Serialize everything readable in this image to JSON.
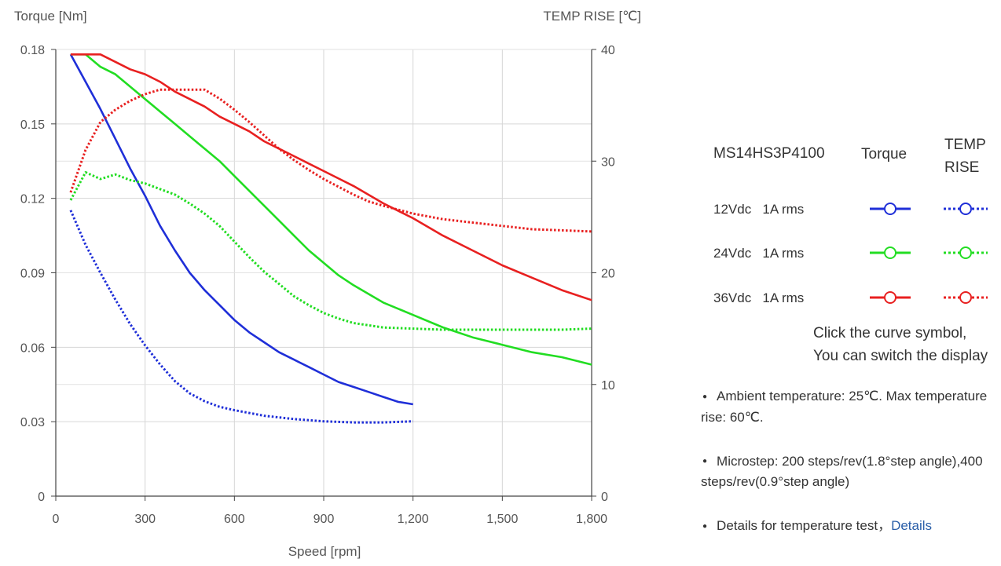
{
  "chart_data": {
    "type": "line",
    "ylabel_left": "Torque  [Nm]",
    "ylabel_right": "TEMP RISE [℃]",
    "xlabel": "Speed [rpm]",
    "xlim": [
      0,
      1800
    ],
    "ylim_left": [
      0,
      0.18
    ],
    "ylim_right": [
      0,
      40
    ],
    "grid": true,
    "x_ticks": [
      0,
      300,
      600,
      900,
      1200,
      1500,
      1800
    ],
    "x_tick_labels": [
      "0",
      "300",
      "600",
      "900",
      "1,200",
      "1,500",
      "1,800"
    ],
    "y_left_ticks": [
      0,
      0.03,
      0.06,
      0.09,
      0.12,
      0.15,
      0.18
    ],
    "y_left_tick_labels": [
      "0",
      "0.03",
      "0.06",
      "0.09",
      "0.12",
      "0.15",
      "0.18"
    ],
    "y_right_ticks": [
      0,
      10,
      20,
      30,
      40
    ],
    "y_right_tick_labels": [
      "0",
      "10",
      "20",
      "30",
      "40"
    ],
    "series": [
      {
        "legend_label": "12Vdc   1A rms",
        "kind": "torque",
        "axis": "left",
        "color": "#1f2fd8",
        "style": "solid",
        "points": [
          [
            50,
            0.178
          ],
          [
            100,
            0.167
          ],
          [
            150,
            0.156
          ],
          [
            200,
            0.144
          ],
          [
            250,
            0.132
          ],
          [
            300,
            0.121
          ],
          [
            350,
            0.109
          ],
          [
            400,
            0.099
          ],
          [
            450,
            0.09
          ],
          [
            500,
            0.083
          ],
          [
            550,
            0.077
          ],
          [
            600,
            0.071
          ],
          [
            650,
            0.066
          ],
          [
            700,
            0.062
          ],
          [
            750,
            0.058
          ],
          [
            800,
            0.055
          ],
          [
            850,
            0.052
          ],
          [
            900,
            0.049
          ],
          [
            950,
            0.046
          ],
          [
            1000,
            0.044
          ],
          [
            1050,
            0.042
          ],
          [
            1100,
            0.04
          ],
          [
            1150,
            0.038
          ],
          [
            1200,
            0.037
          ]
        ]
      },
      {
        "legend_label": "12Vdc   1A rms",
        "kind": "temp",
        "axis": "right",
        "color": "#1f2fd8",
        "style": "dotted",
        "points": [
          [
            50,
            25.6
          ],
          [
            100,
            22.5
          ],
          [
            150,
            20.0
          ],
          [
            200,
            17.6
          ],
          [
            250,
            15.4
          ],
          [
            300,
            13.5
          ],
          [
            350,
            11.8
          ],
          [
            400,
            10.3
          ],
          [
            450,
            9.2
          ],
          [
            500,
            8.5
          ],
          [
            550,
            8.0
          ],
          [
            600,
            7.7
          ],
          [
            700,
            7.2
          ],
          [
            800,
            6.9
          ],
          [
            900,
            6.7
          ],
          [
            1000,
            6.6
          ],
          [
            1100,
            6.6
          ],
          [
            1200,
            6.7
          ]
        ]
      },
      {
        "legend_label": "24Vdc   1A rms",
        "kind": "torque",
        "axis": "left",
        "color": "#22dd22",
        "style": "solid",
        "points": [
          [
            50,
            0.178
          ],
          [
            100,
            0.178
          ],
          [
            150,
            0.173
          ],
          [
            200,
            0.17
          ],
          [
            250,
            0.165
          ],
          [
            300,
            0.16
          ],
          [
            350,
            0.155
          ],
          [
            400,
            0.15
          ],
          [
            450,
            0.145
          ],
          [
            500,
            0.14
          ],
          [
            550,
            0.135
          ],
          [
            600,
            0.129
          ],
          [
            650,
            0.123
          ],
          [
            700,
            0.117
          ],
          [
            750,
            0.111
          ],
          [
            800,
            0.105
          ],
          [
            850,
            0.099
          ],
          [
            900,
            0.094
          ],
          [
            950,
            0.089
          ],
          [
            1000,
            0.085
          ],
          [
            1100,
            0.078
          ],
          [
            1200,
            0.073
          ],
          [
            1300,
            0.068
          ],
          [
            1400,
            0.064
          ],
          [
            1500,
            0.061
          ],
          [
            1600,
            0.058
          ],
          [
            1700,
            0.056
          ],
          [
            1800,
            0.053
          ]
        ]
      },
      {
        "legend_label": "24Vdc   1A rms",
        "kind": "temp",
        "axis": "right",
        "color": "#22dd22",
        "style": "dotted",
        "points": [
          [
            50,
            26.5
          ],
          [
            100,
            29.0
          ],
          [
            150,
            28.4
          ],
          [
            200,
            28.8
          ],
          [
            250,
            28.3
          ],
          [
            300,
            28.0
          ],
          [
            350,
            27.5
          ],
          [
            400,
            27.0
          ],
          [
            450,
            26.2
          ],
          [
            500,
            25.3
          ],
          [
            550,
            24.2
          ],
          [
            600,
            22.8
          ],
          [
            650,
            21.4
          ],
          [
            700,
            20.1
          ],
          [
            750,
            19.0
          ],
          [
            800,
            17.9
          ],
          [
            850,
            17.1
          ],
          [
            900,
            16.4
          ],
          [
            950,
            15.9
          ],
          [
            1000,
            15.5
          ],
          [
            1100,
            15.1
          ],
          [
            1200,
            15.0
          ],
          [
            1300,
            14.9
          ],
          [
            1400,
            14.9
          ],
          [
            1500,
            14.9
          ],
          [
            1600,
            14.9
          ],
          [
            1700,
            14.9
          ],
          [
            1800,
            15.0
          ]
        ]
      },
      {
        "legend_label": "36Vdc   1A rms",
        "kind": "torque",
        "axis": "right_units_left",
        "color": "#e82020",
        "style": "solid",
        "points": [
          [
            50,
            0.178
          ],
          [
            100,
            0.178
          ],
          [
            150,
            0.178
          ],
          [
            200,
            0.175
          ],
          [
            250,
            0.172
          ],
          [
            300,
            0.17
          ],
          [
            350,
            0.167
          ],
          [
            400,
            0.163
          ],
          [
            450,
            0.16
          ],
          [
            500,
            0.157
          ],
          [
            550,
            0.153
          ],
          [
            600,
            0.15
          ],
          [
            650,
            0.147
          ],
          [
            700,
            0.143
          ],
          [
            750,
            0.14
          ],
          [
            800,
            0.137
          ],
          [
            850,
            0.134
          ],
          [
            900,
            0.131
          ],
          [
            950,
            0.128
          ],
          [
            1000,
            0.125
          ],
          [
            1100,
            0.118
          ],
          [
            1200,
            0.112
          ],
          [
            1300,
            0.105
          ],
          [
            1400,
            0.099
          ],
          [
            1500,
            0.093
          ],
          [
            1600,
            0.088
          ],
          [
            1700,
            0.083
          ],
          [
            1800,
            0.079
          ]
        ]
      },
      {
        "legend_label": "36Vdc   1A rms",
        "kind": "temp",
        "axis": "right",
        "color": "#e82020",
        "style": "dotted",
        "points": [
          [
            50,
            27.2
          ],
          [
            100,
            31.0
          ],
          [
            150,
            33.5
          ],
          [
            200,
            34.6
          ],
          [
            250,
            35.4
          ],
          [
            300,
            36.0
          ],
          [
            350,
            36.4
          ],
          [
            400,
            36.4
          ],
          [
            450,
            36.4
          ],
          [
            500,
            36.4
          ],
          [
            550,
            35.6
          ],
          [
            600,
            34.6
          ],
          [
            650,
            33.5
          ],
          [
            700,
            32.3
          ],
          [
            750,
            31.1
          ],
          [
            800,
            30.1
          ],
          [
            850,
            29.2
          ],
          [
            900,
            28.4
          ],
          [
            950,
            27.7
          ],
          [
            1000,
            27.0
          ],
          [
            1050,
            26.4
          ],
          [
            1100,
            26.0
          ],
          [
            1200,
            25.3
          ],
          [
            1300,
            24.8
          ],
          [
            1400,
            24.5
          ],
          [
            1500,
            24.2
          ],
          [
            1600,
            23.9
          ],
          [
            1700,
            23.8
          ],
          [
            1800,
            23.7
          ]
        ]
      }
    ]
  },
  "legend": {
    "model": "MS14HS3P4100",
    "torque_header": "Torque",
    "temp_header": "TEMP RISE",
    "rows": [
      {
        "label": "12Vdc   1A rms",
        "color": "#1f2fd8"
      },
      {
        "label": "24Vdc   1A rms",
        "color": "#22dd22"
      },
      {
        "label": "36Vdc   1A rms",
        "color": "#e82020"
      }
    ]
  },
  "hint": {
    "line1": "Click the curve symbol,",
    "line2": "You can switch the display"
  },
  "notes": {
    "ambient": "Ambient temperature: 25℃.  Max temperature rise: 60℃.",
    "microstep": "Microstep: 200 steps/rev(1.8°step angle),400 steps/rev(0.9°step angle)",
    "details_text": "Details for temperature test，",
    "details_link": "Details"
  }
}
